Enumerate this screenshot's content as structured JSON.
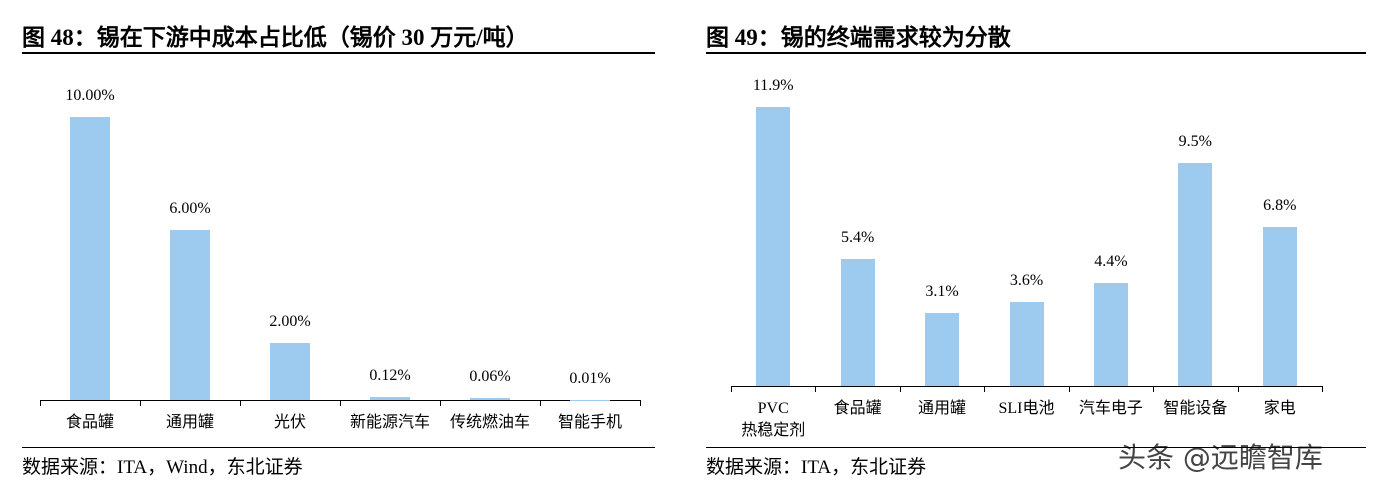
{
  "chart_data": [
    {
      "type": "bar",
      "title": "图 48：锡在下游中成本占比低（锡价 30 万元/吨）",
      "categories": [
        "食品罐",
        "通用罐",
        "光伏",
        "新能源汽车",
        "传统燃油车",
        "智能手机"
      ],
      "values": [
        10,
        6,
        2,
        0.12,
        0.06,
        0.01
      ],
      "value_labels": [
        "10.00%",
        "6.00%",
        "2.00%",
        "0.12%",
        "0.06%",
        "0.01%"
      ],
      "color": "#9dcbf0",
      "ylim": [
        0,
        12
      ],
      "source": "数据来源：ITA，Wind，东北证券"
    },
    {
      "type": "bar",
      "title": "图 49：锡的终端需求较为分散",
      "categories": [
        "PVC\n热稳定剂",
        "食品罐",
        "通用罐",
        "SLI电池",
        "汽车电子",
        "智能设备",
        "家电"
      ],
      "values": [
        11.9,
        5.4,
        3.1,
        3.6,
        4.4,
        9.5,
        6.8
      ],
      "value_labels": [
        "11.9%",
        "5.4%",
        "3.1%",
        "3.6%",
        "4.4%",
        "9.5%",
        "6.8%"
      ],
      "color": "#9dcbf0",
      "ylim": [
        0,
        14
      ],
      "source": "数据来源：ITA，东北证券"
    }
  ],
  "watermark": "头条 @远瞻智库"
}
